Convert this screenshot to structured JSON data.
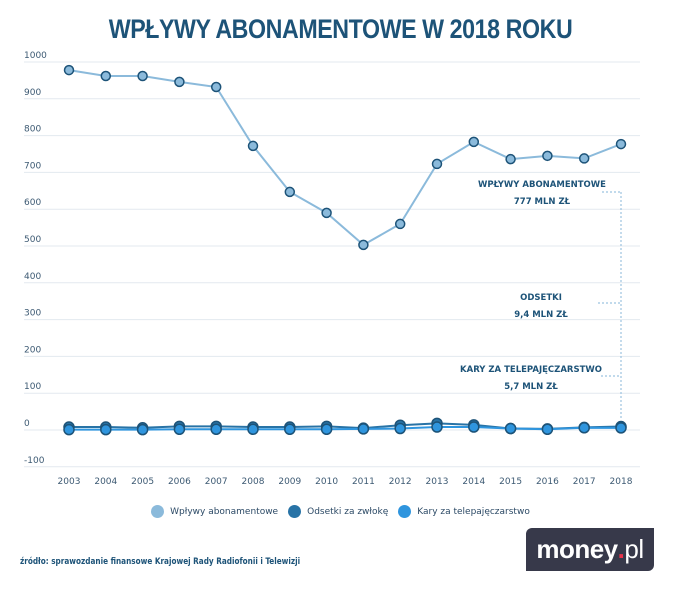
{
  "title": "WPŁYWY ABONAMENTOWE W 2018 ROKU",
  "chart_data": {
    "type": "line",
    "title": "WPŁYWY ABONAMENTOWE W 2018 ROKU",
    "xlabel": "",
    "ylabel": "",
    "ylim": [
      -100,
      1000
    ],
    "yticks": [
      1000,
      900,
      800,
      700,
      600,
      500,
      400,
      300,
      200,
      100,
      0,
      -100
    ],
    "grid": true,
    "legend_position": "bottom",
    "x": [
      "2003",
      "2004",
      "2005",
      "2006",
      "2007",
      "2008",
      "2009",
      "2010",
      "2011",
      "2012",
      "2013",
      "2014",
      "2015",
      "2016",
      "2017",
      "2018"
    ],
    "series": [
      {
        "name": "Wpływy abonamentowe",
        "color": "#8bbadb",
        "values": [
          978,
          962,
          962,
          946,
          932,
          772,
          647,
          590,
          503,
          560,
          723,
          783,
          736,
          745,
          738,
          777
        ]
      },
      {
        "name": "Odsetki za zwłokę",
        "color": "#2873a6",
        "values": [
          8,
          8,
          6,
          10,
          10,
          8,
          8,
          10,
          5,
          13,
          18,
          14,
          4,
          3,
          7,
          9.4
        ]
      },
      {
        "name": "Kary za telepajęczarstwo",
        "color": "#2f95de",
        "values": [
          1,
          1,
          1,
          2,
          2,
          2,
          2,
          2,
          3,
          4,
          8,
          8,
          4,
          2,
          6,
          5.7
        ]
      }
    ],
    "annotations": [
      {
        "label": "WPŁYWY ABONAMENTOWE",
        "value": "777 MLN ZŁ"
      },
      {
        "label": "ODSETKI",
        "value": "9,4 MLN ZŁ"
      },
      {
        "label": "KARY ZA TELEPAJĘCZARSTWO",
        "value": "5,7 MLN ZŁ"
      }
    ]
  },
  "legend": [
    {
      "label": "Wpływy abonamentowe",
      "color": "#8bbadb"
    },
    {
      "label": "Odsetki za zwłokę",
      "color": "#2873a6"
    },
    {
      "label": "Kary za telepajęczarstwo",
      "color": "#2f95de"
    }
  ],
  "source": "źródło: sprawozdanie finansowe Krajowej Rady Radiofonii i Telewizji",
  "logo": {
    "main": "money",
    "dot": ".",
    "tld": "pl"
  }
}
